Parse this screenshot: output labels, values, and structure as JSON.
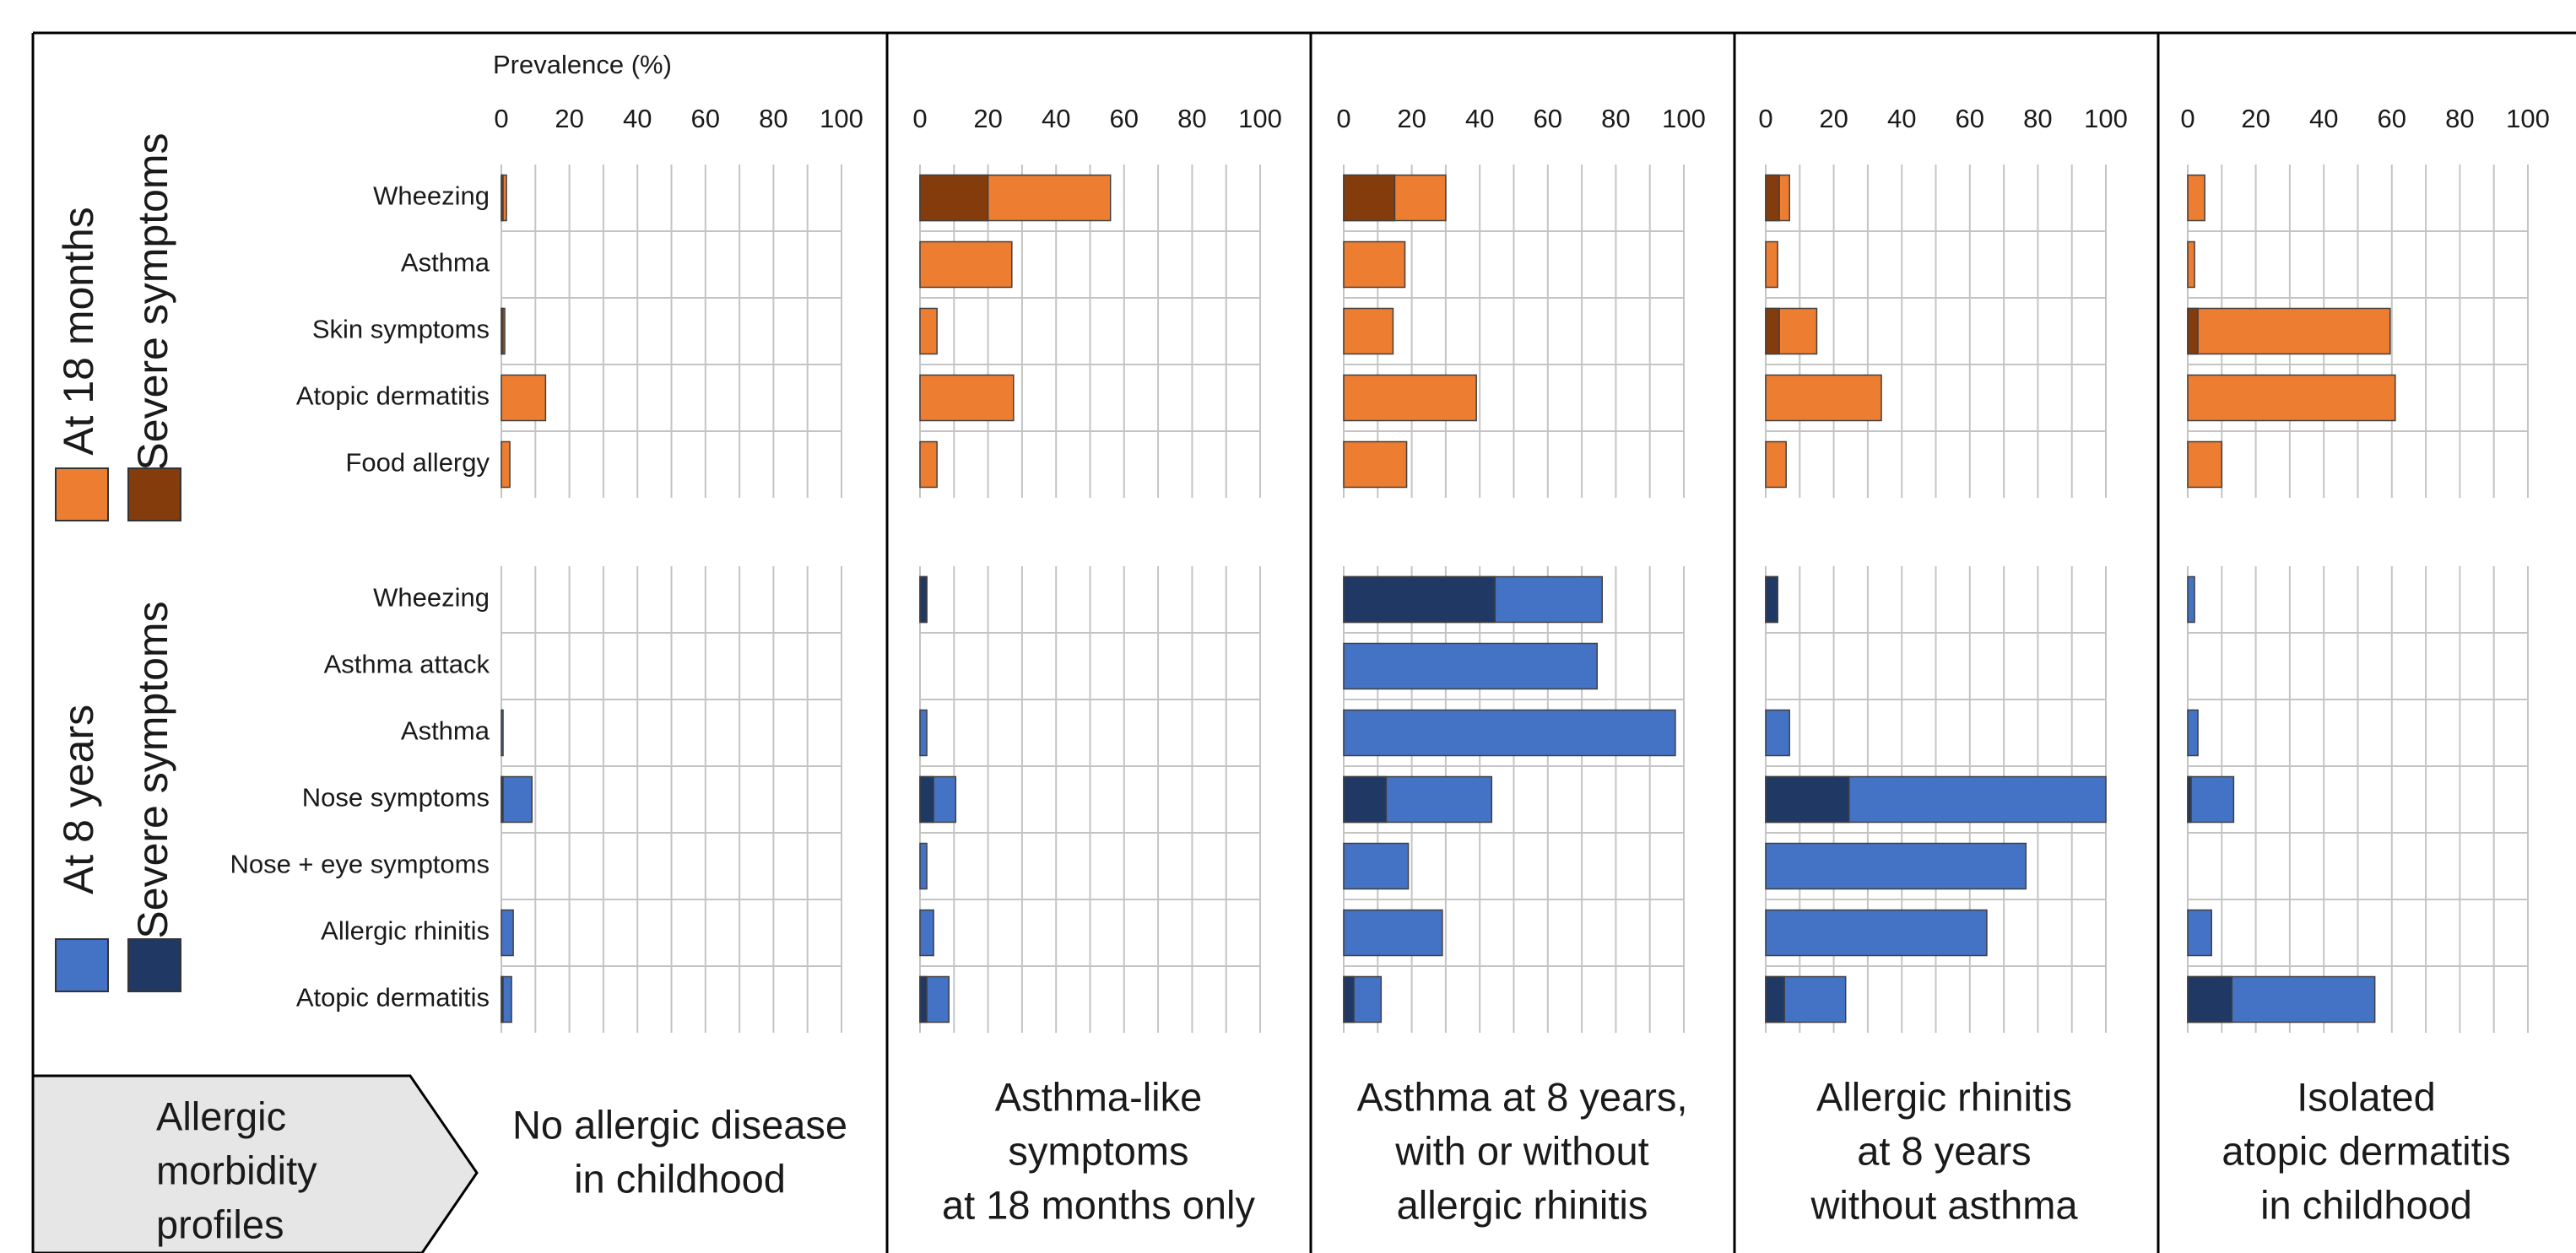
{
  "chart_data": {
    "type": "bar",
    "x_label": "Prevalence (%)",
    "xlim": [
      0,
      100
    ],
    "xticks": [
      0,
      20,
      40,
      60,
      80,
      100
    ],
    "grid": true,
    "groups": [
      {
        "label": "At 18 months",
        "severe_label": "Severe symptoms",
        "color": "#ED7D31",
        "severe_color": "#843C0C",
        "categories": [
          "Wheezing",
          "Asthma",
          "Skin symptoms",
          "Atopic dermatitis",
          "Food allergy"
        ]
      },
      {
        "label": "At 8 years",
        "severe_label": "Severe symptoms",
        "color": "#4472C4",
        "severe_color": "#203864",
        "categories": [
          "Wheezing",
          "Asthma attack",
          "Asthma",
          "Nose symptoms",
          "Nose + eye symptoms",
          "Allergic rhinitis",
          "Atopic dermatitis"
        ]
      }
    ],
    "profiles_label": [
      "Allergic",
      "morbidity",
      "profiles"
    ],
    "panels": [
      {
        "name": [
          "No allergic disease",
          "in childhood"
        ],
        "groups": [
          {
            "values": [
              1.5,
              0,
              1,
              13,
              2.5
            ],
            "severe": [
              0.5,
              null,
              0.5,
              null,
              null
            ]
          },
          {
            "values": [
              0,
              0,
              0.5,
              9,
              0,
              3.5,
              3
            ],
            "severe": [
              null,
              null,
              null,
              0.5,
              null,
              null,
              0.5
            ]
          }
        ]
      },
      {
        "name": [
          "Asthma-like",
          "symptoms",
          "at 18 months only"
        ],
        "groups": [
          {
            "values": [
              56,
              27,
              5,
              27.5,
              5
            ],
            "severe": [
              20,
              null,
              null,
              null,
              null
            ]
          },
          {
            "values": [
              2,
              0,
              2,
              10.5,
              2,
              4,
              8.5
            ],
            "severe": [
              2,
              null,
              null,
              4,
              null,
              null,
              2
            ]
          }
        ]
      },
      {
        "name": [
          "Asthma at 8 years,",
          "with or without",
          "allergic rhinitis"
        ],
        "groups": [
          {
            "values": [
              30,
              18,
              14.5,
              39,
              18.5
            ],
            "severe": [
              15,
              null,
              null,
              null,
              null
            ]
          },
          {
            "values": [
              76,
              74.5,
              97.5,
              43.5,
              19,
              29,
              11
            ],
            "severe": [
              44.5,
              null,
              null,
              12.5,
              null,
              null,
              3
            ]
          }
        ]
      },
      {
        "name": [
          "Allergic rhinitis",
          "at 8 years",
          "without asthma"
        ],
        "groups": [
          {
            "values": [
              7,
              3.5,
              15,
              34,
              6
            ],
            "severe": [
              4,
              null,
              4,
              null,
              null
            ]
          },
          {
            "values": [
              3.5,
              0,
              7,
              100,
              76.5,
              65,
              23.5
            ],
            "severe": [
              3.5,
              null,
              null,
              24.5,
              null,
              null,
              5.5
            ]
          }
        ]
      },
      {
        "name": [
          "Isolated",
          "atopic dermatitis",
          "in childhood"
        ],
        "groups": [
          {
            "values": [
              5,
              2,
              59.5,
              61,
              10
            ],
            "severe": [
              null,
              null,
              3,
              null,
              null
            ]
          },
          {
            "values": [
              2,
              0,
              3,
              13.5,
              0,
              7,
              55
            ],
            "severe": [
              null,
              null,
              null,
              1,
              null,
              null,
              13
            ]
          }
        ]
      }
    ]
  }
}
